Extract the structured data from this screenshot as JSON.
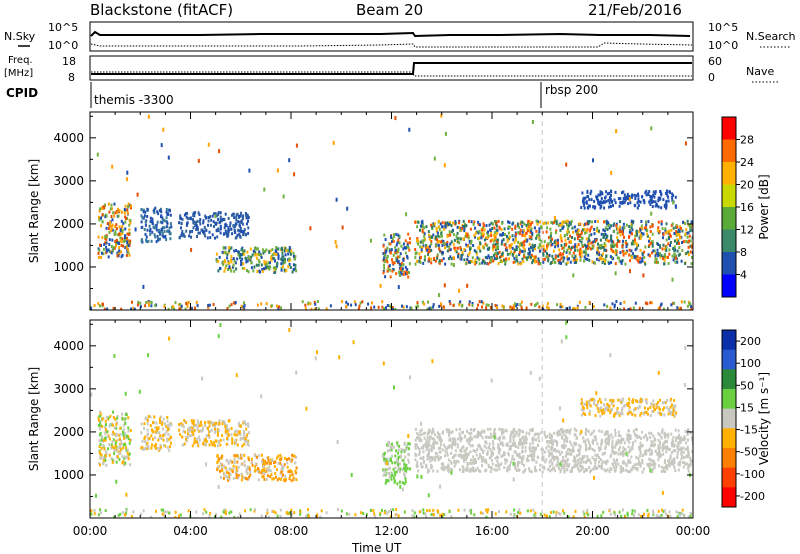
{
  "header": {
    "title": "Blackstone (fitACF)",
    "beam": "Beam 20",
    "date": "21/Feb/2016"
  },
  "top_panels": {
    "nsky_label": "N.Sky",
    "nsearch_label": "N.Search",
    "freq_label_line1": "Freq.",
    "freq_label_line2": "[MHz]",
    "nave_label": "Nave",
    "cpid_label": "CPID",
    "nsky_ticks": [
      "10^5",
      "10^0"
    ],
    "nsearch_ticks": [
      "10^5",
      "10^0"
    ],
    "freq_ticks": [
      "18",
      "8"
    ],
    "nave_ticks": [
      "60",
      "0"
    ],
    "cpid_segments": [
      {
        "label": "themis -3300",
        "start_hour": 0
      },
      {
        "label": "rbsp 200",
        "start_hour": 18
      }
    ]
  },
  "chart_data": [
    {
      "type": "heatmap",
      "name": "power",
      "ylabel": "Slant Range [km]",
      "xlabel": "",
      "y_ticks": [
        "1000",
        "2000",
        "3000",
        "4000"
      ],
      "ylim": [
        0,
        4600
      ],
      "xlim_hours": [
        0,
        24
      ],
      "colorbar_label": "Power [dB]",
      "colorbar_ticks": [
        "4",
        "8",
        "12",
        "16",
        "20",
        "24",
        "28"
      ],
      "colorbar_colors": [
        "#0000ff",
        "#1f4faf",
        "#3a8a6a",
        "#5aaa3a",
        "#c8d800",
        "#ffb000",
        "#ff6a00",
        "#ff0000"
      ],
      "events": [
        {
          "t0": 0.3,
          "t1": 1.6,
          "r0": 1250,
          "r1": 2500,
          "colors": [
            "#ffa000",
            "#e05000",
            "#70b040",
            "#1f4faf"
          ]
        },
        {
          "t0": 2.0,
          "t1": 3.2,
          "r0": 1600,
          "r1": 2400,
          "colors": [
            "#1f4faf",
            "#3a7a9a"
          ]
        },
        {
          "t0": 3.5,
          "t1": 6.3,
          "r0": 1700,
          "r1": 2300,
          "colors": [
            "#1f4faf",
            "#3060a0"
          ]
        },
        {
          "t0": 5.0,
          "t1": 8.2,
          "r0": 900,
          "r1": 1500,
          "colors": [
            "#2c7a60",
            "#70b040",
            "#ffb000",
            "#1f4faf"
          ]
        },
        {
          "t0": 11.6,
          "t1": 12.7,
          "r0": 800,
          "r1": 1800,
          "colors": [
            "#ff6000",
            "#70b040",
            "#1f4faf"
          ]
        },
        {
          "t0": 12.9,
          "t1": 24,
          "r0": 1100,
          "r1": 2100,
          "colors": [
            "#ff5000",
            "#ffb000",
            "#70b040",
            "#2c7a60",
            "#1f4faf"
          ]
        },
        {
          "t0": 19.5,
          "t1": 23.3,
          "r0": 2400,
          "r1": 2800,
          "colors": [
            "#1f4faf"
          ]
        }
      ]
    },
    {
      "type": "heatmap",
      "name": "velocity",
      "ylabel": "Slant Range [km]",
      "xlabel": "Time UT",
      "y_ticks": [
        "1000",
        "2000",
        "3000",
        "4000"
      ],
      "ylim": [
        0,
        4600
      ],
      "xlim_hours": [
        0,
        24
      ],
      "x_ticks": [
        "00:00",
        "04:00",
        "08:00",
        "12:00",
        "16:00",
        "20:00",
        "00:00"
      ],
      "colorbar_label": "Velocity [m s⁻¹]",
      "colorbar_ticks": [
        "200",
        "100",
        "50",
        "15",
        "-15",
        "-50",
        "-100",
        "-200"
      ],
      "colorbar_colors": [
        "#0b2fa8",
        "#2a5ad0",
        "#2a8a3a",
        "#6ad040",
        "#c8c8c0",
        "#ffb000",
        "#ff8000",
        "#ff4000",
        "#ff0000"
      ],
      "events": [
        {
          "t0": 0.3,
          "t1": 1.6,
          "r0": 1250,
          "r1": 2500,
          "colors": [
            "#c8c8c0",
            "#ffb000",
            "#6ad040"
          ]
        },
        {
          "t0": 2.0,
          "t1": 3.2,
          "r0": 1600,
          "r1": 2400,
          "colors": [
            "#c8c8c0",
            "#ffb000"
          ]
        },
        {
          "t0": 3.5,
          "t1": 6.3,
          "r0": 1700,
          "r1": 2300,
          "colors": [
            "#c8c8c0",
            "#ffb000"
          ]
        },
        {
          "t0": 5.0,
          "t1": 8.2,
          "r0": 900,
          "r1": 1500,
          "colors": [
            "#ffb000",
            "#ff9000",
            "#c8c8c0"
          ]
        },
        {
          "t0": 11.6,
          "t1": 12.7,
          "r0": 800,
          "r1": 1800,
          "colors": [
            "#c8c8c0",
            "#6ad040"
          ]
        },
        {
          "t0": 12.9,
          "t1": 24,
          "r0": 1100,
          "r1": 2100,
          "colors": [
            "#c8c8c0"
          ]
        },
        {
          "t0": 19.5,
          "t1": 23.3,
          "r0": 2400,
          "r1": 2800,
          "colors": [
            "#c8c8c0",
            "#ffb000"
          ]
        }
      ]
    }
  ]
}
